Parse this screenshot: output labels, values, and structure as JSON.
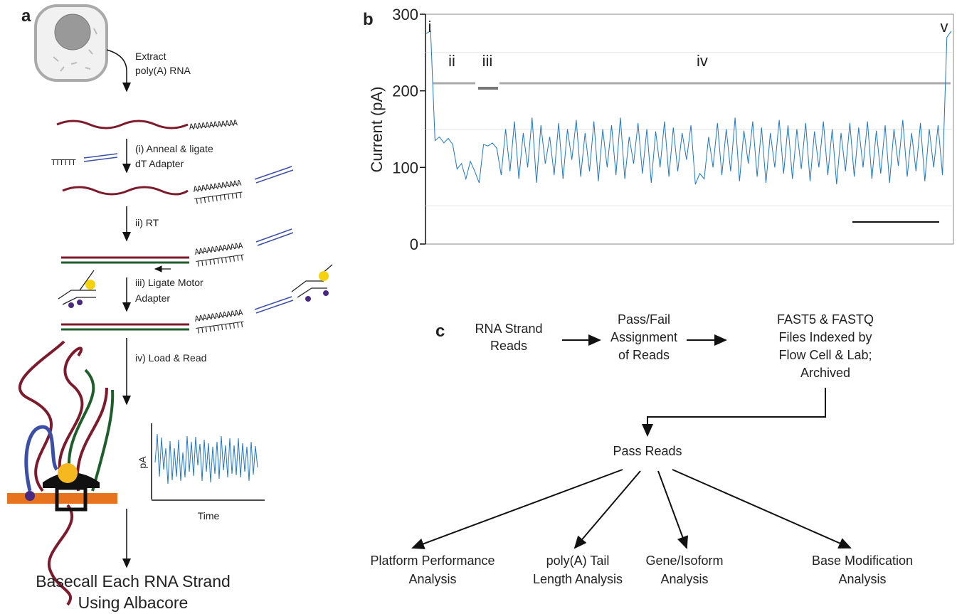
{
  "panel_a": {
    "label": "a",
    "extract": [
      "Extract",
      "poly(A) RNA"
    ],
    "poly_a": "AAAAAAAAAAAA",
    "poly_t": "TTTTTTTTTTTT",
    "poly_t_short": "TTTTTT",
    "step_i": [
      "(i) Anneal & ligate",
      "dT Adapter"
    ],
    "step_ii": "ii) RT",
    "step_iii": [
      "iii) Ligate Motor",
      "Adapter"
    ],
    "step_iv": "iv) Load & Read",
    "inset_y": "pA",
    "inset_x": "Time",
    "result": [
      "Basecall Each RNA Strand",
      "Using Albacore"
    ]
  },
  "panel_b": {
    "label": "b",
    "y_label": "Current (pA)",
    "ylim": [
      0,
      300
    ],
    "yticks": [
      0,
      100,
      200,
      300
    ],
    "gridlines": [
      50,
      150,
      250
    ],
    "segments": [
      "i",
      "ii",
      "iii",
      "iv",
      "v"
    ],
    "color": "#1f77c4",
    "trace": [
      275,
      278,
      135,
      140,
      132,
      138,
      130,
      98,
      105,
      85,
      108,
      95,
      80,
      130,
      128,
      132,
      125,
      90,
      150,
      95,
      160,
      85,
      145,
      100,
      165,
      80,
      155,
      105,
      140,
      90,
      158,
      85,
      150,
      110,
      162,
      88,
      145,
      95,
      160,
      82,
      150,
      100,
      155,
      90,
      165,
      85,
      140,
      105,
      158,
      92,
      150,
      80,
      147,
      100,
      160,
      88,
      152,
      95,
      145,
      110,
      155,
      78,
      92,
      85,
      140,
      100,
      158,
      90,
      150,
      95,
      165,
      82,
      148,
      105,
      160,
      88,
      152,
      80,
      145,
      100,
      162,
      92,
      155,
      85,
      150,
      98,
      158,
      82,
      147,
      100,
      160,
      90,
      150,
      78,
      145,
      95,
      158,
      88,
      152,
      100,
      160,
      85,
      148,
      92,
      155,
      80,
      150,
      102,
      162,
      88,
      145,
      95,
      158,
      82,
      150,
      100,
      155,
      90,
      270,
      278
    ]
  },
  "panel_c": {
    "label": "c",
    "nodes": [
      [
        "RNA Strand",
        "Reads"
      ],
      [
        "Pass/Fail",
        "Assignment",
        "of Reads"
      ],
      [
        "FAST5 & FASTQ",
        "Files Indexed by",
        "Flow Cell & Lab;",
        "Archived"
      ],
      [
        "Pass Reads"
      ]
    ],
    "analyses": [
      [
        "Platform Performance",
        "Analysis"
      ],
      [
        "poly(A) Tail",
        "Length Analysis"
      ],
      [
        "Gene/Isoform",
        "Analysis"
      ],
      [
        "Base Modification",
        "Analysis"
      ]
    ]
  }
}
